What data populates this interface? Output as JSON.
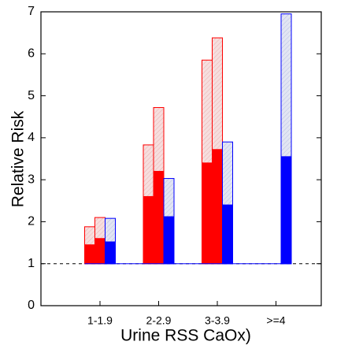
{
  "chart_data": {
    "type": "range-bar",
    "x_label": "Urine RSS CaOx)",
    "y_label": "Relative Risk",
    "categories": [
      "1-1.9",
      "2-2.9",
      "3-3.9",
      ">=4"
    ],
    "reference_line": 1,
    "series": [
      {
        "color": "#ff0000",
        "values": [
          1.45,
          2.6,
          3.4,
          null
        ],
        "upper": [
          1.88,
          3.83,
          5.85,
          null
        ]
      },
      {
        "color": "#ff0000",
        "values": [
          1.6,
          3.2,
          3.72,
          null
        ],
        "upper": [
          2.1,
          4.72,
          6.38,
          null
        ]
      },
      {
        "color": "#0000ff",
        "values": [
          1.52,
          2.12,
          2.4,
          3.55
        ],
        "upper": [
          2.08,
          3.03,
          3.9,
          6.95
        ]
      }
    ],
    "ylim": [
      0,
      7
    ],
    "yticks": [
      0,
      1,
      2,
      3,
      4,
      5,
      6,
      7
    ]
  }
}
